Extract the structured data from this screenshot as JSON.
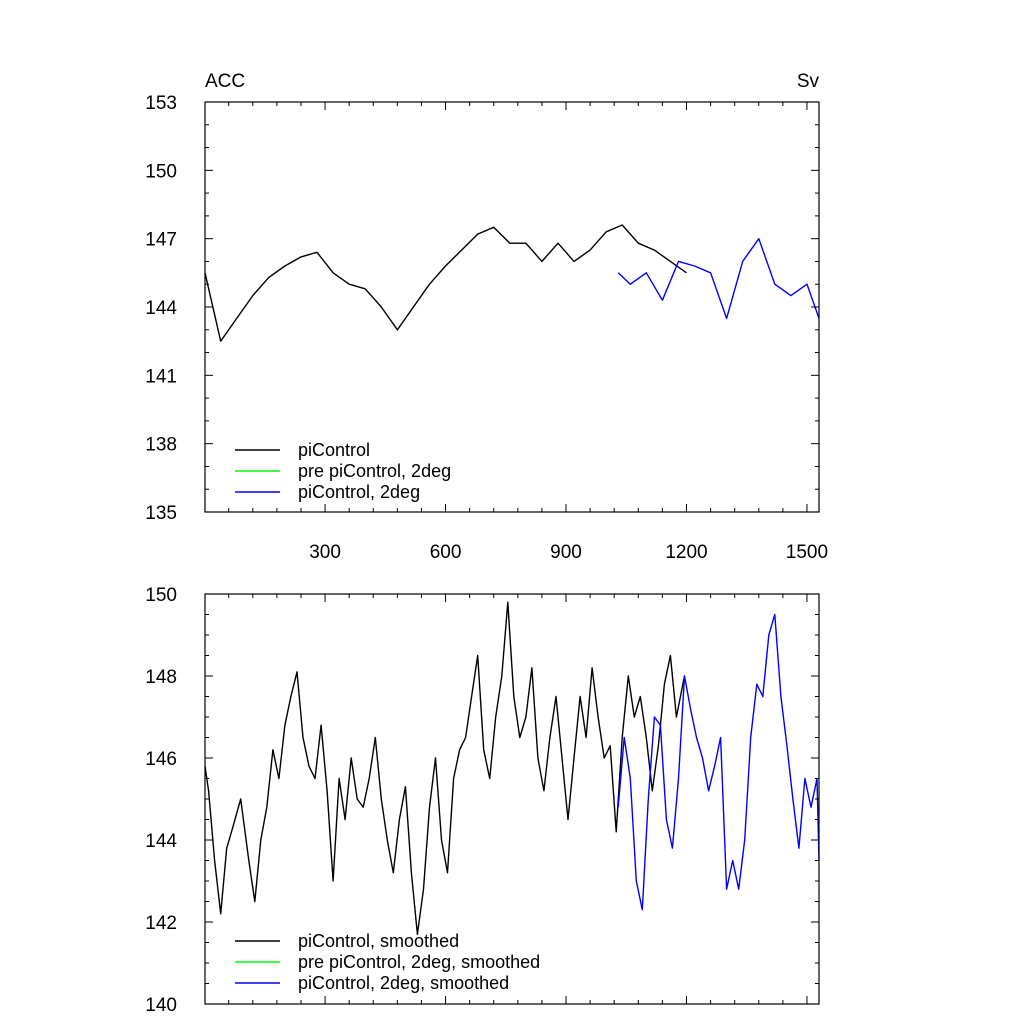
{
  "chart_data": [
    {
      "type": "line",
      "title": "",
      "left_title": "ACC",
      "right_title": "Sv",
      "xlim": [
        1,
        1530
      ],
      "ylim": [
        135,
        153
      ],
      "xticks": [
        300,
        600,
        900,
        1200,
        1500
      ],
      "xtick_labels": [
        "300",
        "600",
        "900",
        "1200",
        "1500"
      ],
      "yticks": [
        135,
        138,
        141,
        144,
        147,
        150,
        153
      ],
      "ytick_labels": [
        "135",
        "138",
        "141",
        "144",
        "147",
        "150",
        "153"
      ],
      "legend_position": "bottom-left",
      "grid": false,
      "series": [
        {
          "name": "piControl",
          "color": "#000000",
          "x": [
            1,
            40,
            80,
            120,
            160,
            200,
            240,
            280,
            320,
            360,
            400,
            440,
            480,
            520,
            560,
            600,
            640,
            680,
            720,
            760,
            800,
            840,
            880,
            920,
            960,
            1000,
            1040,
            1080,
            1120,
            1160,
            1200
          ],
          "y": [
            145.5,
            142.5,
            143.5,
            144.5,
            145.3,
            145.8,
            146.2,
            146.4,
            145.5,
            145.0,
            144.8,
            144.0,
            143.0,
            144.0,
            145.0,
            145.8,
            146.5,
            147.2,
            147.5,
            146.8,
            146.8,
            146.0,
            146.8,
            146.0,
            146.5,
            147.3,
            147.6,
            146.8,
            146.5,
            146.0,
            145.5
          ]
        },
        {
          "name": "pre piControl, 2deg",
          "color": "#00ff00",
          "x": [],
          "y": []
        },
        {
          "name": "piControl, 2deg",
          "color": "#0000ff",
          "x": [
            1030,
            1060,
            1100,
            1140,
            1180,
            1220,
            1260,
            1300,
            1340,
            1380,
            1420,
            1460,
            1500,
            1530
          ],
          "y": [
            145.5,
            145.0,
            145.5,
            144.3,
            146.0,
            145.8,
            145.5,
            143.5,
            146.0,
            147.0,
            145.0,
            144.5,
            145.0,
            143.5
          ]
        }
      ]
    },
    {
      "type": "line",
      "title": "",
      "xlim": [
        1,
        1530
      ],
      "ylim": [
        140,
        150
      ],
      "xticks": [
        300,
        600,
        900,
        1200,
        1500
      ],
      "yticks": [
        140,
        142,
        144,
        146,
        148,
        150
      ],
      "ytick_labels": [
        "140",
        "142",
        "144",
        "146",
        "148",
        "150"
      ],
      "legend_position": "bottom-left",
      "grid": false,
      "series": [
        {
          "name": "piControl, smoothed",
          "color": "#000000",
          "x": [
            1,
            10,
            25,
            40,
            55,
            70,
            90,
            110,
            125,
            140,
            155,
            170,
            185,
            200,
            215,
            230,
            245,
            260,
            275,
            290,
            305,
            320,
            335,
            350,
            365,
            380,
            395,
            410,
            425,
            440,
            455,
            470,
            485,
            500,
            515,
            530,
            545,
            560,
            575,
            590,
            605,
            620,
            635,
            650,
            665,
            680,
            695,
            710,
            725,
            740,
            755,
            770,
            785,
            800,
            815,
            830,
            845,
            860,
            875,
            890,
            905,
            920,
            935,
            950,
            965,
            980,
            995,
            1010,
            1025,
            1040,
            1055,
            1070,
            1085,
            1100,
            1115,
            1130,
            1145,
            1160,
            1175,
            1195
          ],
          "y": [
            145.8,
            145.2,
            143.5,
            142.2,
            143.8,
            144.3,
            145.0,
            143.5,
            142.5,
            144.0,
            144.8,
            146.2,
            145.5,
            146.8,
            147.5,
            148.1,
            146.5,
            145.8,
            145.5,
            146.8,
            145.2,
            143.0,
            145.5,
            144.5,
            146.0,
            145.0,
            144.8,
            145.5,
            146.5,
            145.0,
            144.0,
            143.2,
            144.5,
            145.3,
            143.2,
            141.7,
            142.8,
            144.8,
            146.0,
            144.0,
            143.2,
            145.5,
            146.2,
            146.5,
            147.5,
            148.5,
            146.2,
            145.5,
            147.0,
            148.0,
            149.8,
            147.5,
            146.5,
            147.0,
            148.2,
            146.0,
            145.2,
            146.5,
            147.5,
            146.0,
            144.5,
            146.0,
            147.5,
            146.5,
            148.2,
            147.0,
            146.0,
            146.3,
            144.2,
            146.5,
            148.0,
            147.0,
            147.5,
            146.5,
            145.2,
            146.3,
            147.8,
            148.5,
            147.0,
            148.0
          ]
        },
        {
          "name": "pre piControl, 2deg, smoothed",
          "color": "#00ff00",
          "x": [],
          "y": []
        },
        {
          "name": "piControl, 2deg, smoothed",
          "color": "#0000ff",
          "x": [
            1030,
            1045,
            1060,
            1075,
            1090,
            1105,
            1120,
            1135,
            1150,
            1165,
            1180,
            1195,
            1210,
            1225,
            1240,
            1255,
            1270,
            1285,
            1300,
            1315,
            1330,
            1345,
            1360,
            1375,
            1390,
            1405,
            1420,
            1435,
            1450,
            1465,
            1480,
            1495,
            1510,
            1525,
            1530
          ],
          "y": [
            144.8,
            146.5,
            145.5,
            143.0,
            142.3,
            145.0,
            147.0,
            146.8,
            144.5,
            143.8,
            145.5,
            148.0,
            147.2,
            146.5,
            146.0,
            145.2,
            145.8,
            146.5,
            142.8,
            143.5,
            142.8,
            144.0,
            146.5,
            147.8,
            147.5,
            149.0,
            149.5,
            147.5,
            146.3,
            145.0,
            143.8,
            145.5,
            144.8,
            145.5,
            143.5
          ]
        }
      ]
    }
  ]
}
